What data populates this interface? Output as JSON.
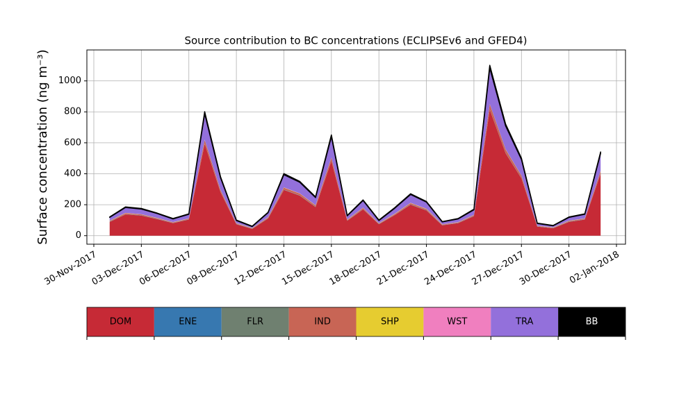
{
  "chart_data": {
    "type": "stacked_area",
    "title": "Source contribution to BC concentrations (ECLIPSEv6 and GFED4)",
    "ylabel": "Surface concentration (ng m⁻³)",
    "x": [
      "2017-12-01",
      "2017-12-02",
      "2017-12-03",
      "2017-12-04",
      "2017-12-05",
      "2017-12-06",
      "2017-12-07",
      "2017-12-08",
      "2017-12-09",
      "2017-12-10",
      "2017-12-11",
      "2017-12-12",
      "2017-12-13",
      "2017-12-14",
      "2017-12-15",
      "2017-12-16",
      "2017-12-17",
      "2017-12-18",
      "2017-12-19",
      "2017-12-20",
      "2017-12-21",
      "2017-12-22",
      "2017-12-23",
      "2017-12-24",
      "2017-12-25",
      "2017-12-26",
      "2017-12-27",
      "2017-12-28",
      "2017-12-29",
      "2017-12-30",
      "2017-12-31",
      "2018-01-01"
    ],
    "series": [
      {
        "name": "DOM",
        "color": "#c62a36",
        "values": [
          89,
          137,
          130,
          107,
          81,
          104,
          592,
          281,
          74,
          44,
          111,
          296,
          259,
          185,
          481,
          96,
          170,
          74,
          133,
          200,
          163,
          67,
          81,
          126,
          814,
          533,
          370,
          59,
          48,
          89,
          104,
          400
        ]
      },
      {
        "name": "ENE",
        "color": "#3778b0",
        "values": [
          1,
          1,
          1,
          1,
          1,
          1,
          1,
          1,
          1,
          1,
          1,
          1,
          1,
          1,
          1,
          1,
          1,
          1,
          1,
          1,
          1,
          1,
          1,
          1,
          1,
          1,
          1,
          1,
          1,
          1,
          1,
          1
        ]
      },
      {
        "name": "FLR",
        "color": "#6f8070",
        "values": [
          1,
          1,
          1,
          1,
          1,
          1,
          1,
          1,
          1,
          1,
          1,
          1,
          1,
          1,
          1,
          1,
          1,
          1,
          1,
          1,
          1,
          1,
          1,
          1,
          1,
          1,
          1,
          1,
          1,
          1,
          1,
          1
        ]
      },
      {
        "name": "IND",
        "color": "#c86555",
        "values": [
          4,
          6,
          5,
          4,
          3,
          4,
          24,
          11,
          3,
          2,
          5,
          12,
          11,
          8,
          20,
          4,
          7,
          3,
          5,
          8,
          7,
          3,
          3,
          5,
          33,
          22,
          15,
          2,
          2,
          4,
          4,
          16
        ]
      },
      {
        "name": "SHP",
        "color": "#e6cc30",
        "values": [
          1,
          1,
          1,
          1,
          1,
          1,
          1,
          1,
          1,
          1,
          1,
          1,
          1,
          1,
          1,
          1,
          1,
          1,
          1,
          1,
          1,
          1,
          1,
          1,
          1,
          1,
          1,
          1,
          1,
          1,
          1,
          1
        ]
      },
      {
        "name": "WST",
        "color": "#f07fbf",
        "values": [
          1,
          1,
          1,
          1,
          1,
          1,
          1,
          1,
          1,
          1,
          1,
          1,
          1,
          1,
          1,
          1,
          1,
          1,
          1,
          1,
          1,
          1,
          1,
          1,
          1,
          1,
          1,
          1,
          1,
          1,
          1,
          1
        ]
      },
      {
        "name": "TRA",
        "color": "#9370db",
        "values": [
          21,
          35,
          33,
          28,
          20,
          26,
          168,
          78,
          17,
          9,
          28,
          82,
          71,
          49,
          135,
          24,
          46,
          17,
          35,
          54,
          43,
          15,
          20,
          32,
          232,
          150,
          103,
          14,
          10,
          21,
          26,
          112
        ]
      },
      {
        "name": "BB",
        "color": "#000000",
        "values": [
          3,
          4,
          4,
          3,
          3,
          3,
          13,
          7,
          3,
          2,
          3,
          7,
          6,
          5,
          11,
          3,
          4,
          3,
          4,
          5,
          4,
          2,
          3,
          4,
          18,
          12,
          9,
          2,
          2,
          3,
          3,
          9
        ]
      }
    ],
    "xlim": [
      "2017-11-30",
      "2018-01-02"
    ],
    "xticks": [
      {
        "value": "2017-11-30",
        "label": "30-Nov-2017"
      },
      {
        "value": "2017-12-03",
        "label": "03-Dec-2017"
      },
      {
        "value": "2017-12-06",
        "label": "06-Dec-2017"
      },
      {
        "value": "2017-12-09",
        "label": "09-Dec-2017"
      },
      {
        "value": "2017-12-12",
        "label": "12-Dec-2017"
      },
      {
        "value": "2017-12-15",
        "label": "15-Dec-2017"
      },
      {
        "value": "2017-12-18",
        "label": "18-Dec-2017"
      },
      {
        "value": "2017-12-21",
        "label": "21-Dec-2017"
      },
      {
        "value": "2017-12-24",
        "label": "24-Dec-2017"
      },
      {
        "value": "2017-12-27",
        "label": "27-Dec-2017"
      },
      {
        "value": "2017-12-30",
        "label": "30-Dec-2017"
      },
      {
        "value": "2018-01-02",
        "label": "02-Jan-2018"
      }
    ],
    "ylim": [
      -55,
      1200
    ],
    "yticks": [
      0,
      200,
      400,
      600,
      800,
      1000
    ],
    "grid": true
  }
}
